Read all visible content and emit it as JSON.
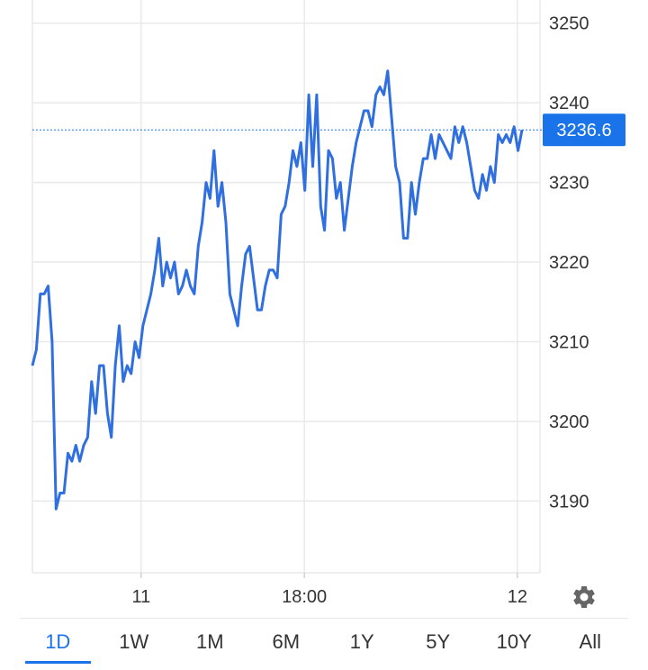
{
  "colors": {
    "line": "#2f6fe0",
    "accent": "#1a73e8",
    "grid": "#e9e9e9"
  },
  "price_label": "3236.6",
  "settings_icon": "gear-icon",
  "ranges": [
    {
      "label": "1D",
      "active": true
    },
    {
      "label": "1W",
      "active": false
    },
    {
      "label": "1M",
      "active": false
    },
    {
      "label": "6M",
      "active": false
    },
    {
      "label": "1Y",
      "active": false
    },
    {
      "label": "5Y",
      "active": false
    },
    {
      "label": "10Y",
      "active": false
    },
    {
      "label": "All",
      "active": false
    }
  ],
  "chart_data": {
    "type": "line",
    "ylim": [
      3181,
      3252
    ],
    "y_ticks": [
      "3190",
      "3200",
      "3210",
      "3220",
      "3230",
      "3240",
      "3250"
    ],
    "x_ticks": [
      "11",
      "18:00",
      "12"
    ],
    "x_tick_positions": [
      0.2143,
      0.5357,
      0.9554
    ],
    "current_value": 3236.6,
    "grid": true,
    "series": [
      {
        "values": [
          3207,
          3209,
          3216,
          3216,
          3217,
          3210,
          3189,
          3191,
          3191,
          3196,
          3195,
          3197,
          3195,
          3197,
          3198,
          3205,
          3201,
          3207,
          3207,
          3201,
          3198,
          3207,
          3212,
          3205,
          3207,
          3206,
          3210,
          3208,
          3212,
          3214,
          3216,
          3219,
          3223,
          3217,
          3220,
          3218,
          3220,
          3216,
          3217,
          3219,
          3217,
          3216,
          3222,
          3225,
          3230,
          3228,
          3234,
          3227,
          3230,
          3225,
          3216,
          3214,
          3212,
          3217,
          3221,
          3222,
          3218,
          3214,
          3214,
          3217,
          3219,
          3219,
          3218,
          3226,
          3227,
          3230,
          3234,
          3232,
          3235,
          3229,
          3241,
          3232,
          3241,
          3227,
          3224,
          3234,
          3233,
          3228,
          3230,
          3224,
          3228,
          3232,
          3235,
          3237,
          3239,
          3239,
          3237,
          3241,
          3242,
          3241,
          3244,
          3238,
          3232,
          3230,
          3223,
          3223,
          3230,
          3226,
          3230,
          3233,
          3233,
          3236,
          3233,
          3236,
          3235,
          3234,
          3233,
          3237,
          3235,
          3237,
          3235,
          3232,
          3229,
          3228,
          3231,
          3229,
          3232,
          3230,
          3236,
          3235,
          3236,
          3235,
          3237,
          3234,
          3236.6
        ]
      }
    ]
  }
}
